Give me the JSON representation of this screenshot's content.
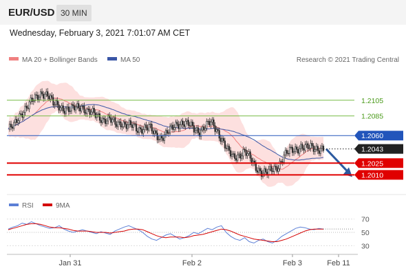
{
  "header": {
    "symbol": "EUR/USD",
    "timeframe": "30 MIN",
    "datetime": "Wednesday, February 3, 2021 7:01:07 AM CET"
  },
  "legend": {
    "ma20_label": "MA 20 + Bollinger Bands",
    "ma50_label": "MA 50",
    "credit": "Research © 2021 Trading Central",
    "rsi_label": "RSI",
    "rsi_ma_label": "9MA"
  },
  "colors": {
    "ma20": "#f08080",
    "ma50": "#3a56a6",
    "bollinger_fill": "#fde0df",
    "candle": "#2f2f2f",
    "support": "#e00000",
    "resistance_green": "#77bb44",
    "pivot_blue": "#2255bb",
    "current": "#222222",
    "rsi": "#5b7fd6",
    "rsi_ma": "#d40000"
  },
  "chart_data": [
    {
      "type": "line",
      "title": "EUR/USD 30 MIN",
      "x_ticks": [
        "Jan 31",
        "Feb 2",
        "Feb 3",
        "Feb 11"
      ],
      "ylim": [
        1.1985,
        1.2145
      ],
      "price_levels": [
        {
          "value": 1.2105,
          "label": "1.2105",
          "style": "green-line"
        },
        {
          "value": 1.2085,
          "label": "1.2085",
          "style": "green-line"
        },
        {
          "value": 1.206,
          "label": "1.2060",
          "style": "blue-tag"
        },
        {
          "value": 1.2043,
          "label": "1.2043",
          "style": "current-tag"
        },
        {
          "value": 1.2025,
          "label": "1.2025",
          "style": "red-tag"
        },
        {
          "value": 1.201,
          "label": "1.2010",
          "style": "red-tag"
        }
      ],
      "series": [
        {
          "name": "MA 20 + Bollinger Bands",
          "values": []
        },
        {
          "name": "MA 50",
          "values": []
        }
      ],
      "price_path": [
        [
          0,
          1.2068
        ],
        [
          4,
          1.2072
        ],
        [
          8,
          1.2085
        ],
        [
          12,
          1.2095
        ],
        [
          16,
          1.2102
        ],
        [
          20,
          1.2108
        ],
        [
          24,
          1.2115
        ],
        [
          28,
          1.2112
        ],
        [
          32,
          1.21
        ],
        [
          36,
          1.2098
        ],
        [
          40,
          1.2094
        ],
        [
          44,
          1.2092
        ],
        [
          48,
          1.2096
        ],
        [
          52,
          1.2098
        ],
        [
          56,
          1.209
        ],
        [
          60,
          1.2088
        ],
        [
          64,
          1.2085
        ],
        [
          68,
          1.208
        ],
        [
          72,
          1.208
        ],
        [
          76,
          1.2075
        ],
        [
          80,
          1.2077
        ],
        [
          84,
          1.2073
        ],
        [
          88,
          1.2072
        ],
        [
          92,
          1.2068
        ],
        [
          96,
          1.207
        ],
        [
          100,
          1.207
        ],
        [
          104,
          1.2062
        ],
        [
          108,
          1.2058
        ],
        [
          112,
          1.2062
        ],
        [
          116,
          1.2068
        ],
        [
          120,
          1.2075
        ],
        [
          124,
          1.2077
        ],
        [
          128,
          1.2074
        ],
        [
          132,
          1.2068
        ],
        [
          136,
          1.2066
        ],
        [
          140,
          1.2072
        ],
        [
          144,
          1.2076
        ],
        [
          148,
          1.2068
        ],
        [
          152,
          1.2055
        ],
        [
          156,
          1.204
        ],
        [
          160,
          1.2032
        ],
        [
          164,
          1.2036
        ],
        [
          168,
          1.204
        ],
        [
          172,
          1.203
        ],
        [
          176,
          1.202
        ],
        [
          180,
          1.2014
        ],
        [
          184,
          1.2012
        ],
        [
          188,
          1.2017
        ],
        [
          192,
          1.2022
        ],
        [
          196,
          1.2034
        ],
        [
          200,
          1.204
        ],
        [
          204,
          1.2043
        ],
        [
          208,
          1.2046
        ],
        [
          212,
          1.2044
        ],
        [
          216,
          1.2045
        ],
        [
          220,
          1.2044
        ],
        [
          224,
          1.2043
        ]
      ],
      "forecast": {
        "from": [
          224,
          1.2043
        ],
        "to": [
          240,
          1.201
        ]
      }
    },
    {
      "type": "line",
      "title": "RSI",
      "ylim": [
        20,
        80
      ],
      "y_ticks": [
        70,
        50,
        30
      ],
      "series": [
        {
          "name": "RSI",
          "values": [
            55,
            58,
            60,
            64,
            62,
            66,
            63,
            60,
            58,
            56,
            57,
            60,
            55,
            52,
            50,
            52,
            54,
            52,
            50,
            48,
            51,
            49,
            47,
            52,
            55,
            58,
            60,
            57,
            54,
            50,
            44,
            40,
            38,
            42,
            46,
            48,
            44,
            40,
            42,
            45,
            50,
            48,
            52,
            56,
            54,
            58,
            60,
            50,
            44,
            40,
            38,
            42,
            36,
            34,
            38,
            40,
            36,
            34,
            38,
            44,
            48,
            52,
            56,
            58,
            57,
            55,
            54,
            56,
            55
          ]
        },
        {
          "name": "9MA",
          "values": [
            54,
            56,
            58,
            60,
            62,
            63,
            63,
            62,
            60,
            58,
            57,
            57,
            56,
            55,
            53,
            52,
            52,
            52,
            51,
            50,
            50,
            50,
            49,
            50,
            51,
            52,
            54,
            55,
            55,
            54,
            51,
            48,
            45,
            43,
            42,
            43,
            43,
            43,
            42,
            43,
            45,
            46,
            47,
            49,
            51,
            53,
            55,
            54,
            52,
            49,
            46,
            44,
            42,
            40,
            39,
            38,
            37,
            36,
            36,
            38,
            40,
            43,
            46,
            49,
            52,
            54,
            55,
            55,
            55
          ]
        }
      ]
    }
  ]
}
